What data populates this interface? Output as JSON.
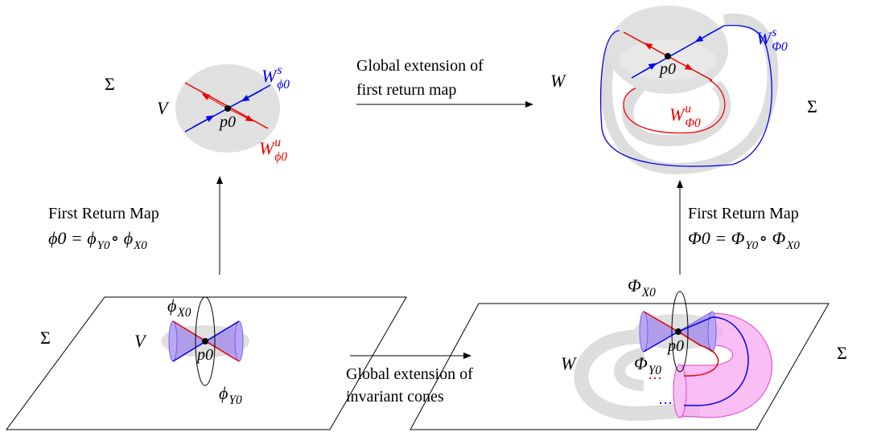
{
  "top_left": {
    "sigma": "Σ",
    "domain": "V",
    "point": "p0",
    "stable": {
      "base": "W",
      "sup": "s",
      "sub": "ϕ0"
    },
    "unstable": {
      "base": "W",
      "sup": "u",
      "sub": "ϕ0"
    }
  },
  "top_arrow": {
    "line1": "Global extension of",
    "line2": "first return map"
  },
  "top_right": {
    "sigma": "Σ",
    "domain": "W",
    "point": "p0",
    "stable": {
      "base": "W",
      "sup": "s",
      "sub": "Φ0"
    },
    "unstable": {
      "base": "W",
      "sup": "u",
      "sub": "Φ0"
    }
  },
  "left_arrow": {
    "line1": "First Return Map",
    "equation": [
      {
        "base": "ϕ0 = ϕ",
        "sub": "Y0"
      },
      {
        "base": " ∘ ϕ",
        "sub": "X0"
      }
    ]
  },
  "right_arrow": {
    "line1": "First Return Map",
    "equation": [
      {
        "base": "Φ0 = Φ",
        "sub": "Y0"
      },
      {
        "base": " ∘ Φ",
        "sub": "X0"
      }
    ]
  },
  "bottom_left": {
    "sigma": "Σ",
    "domain": "V",
    "point": "p0",
    "flow_x": {
      "base": "ϕ",
      "sub": "X0"
    },
    "flow_y": {
      "base": "ϕ",
      "sub": "Y0"
    }
  },
  "bottom_arrow": {
    "line1": "Global extension of",
    "line2": "invariant cones"
  },
  "bottom_right": {
    "sigma": "Σ",
    "domain": "W",
    "point": "p0",
    "flow_x": {
      "base": "Φ",
      "sub": "X0"
    },
    "flow_y": {
      "base": "Φ",
      "sub": "Y0"
    }
  }
}
